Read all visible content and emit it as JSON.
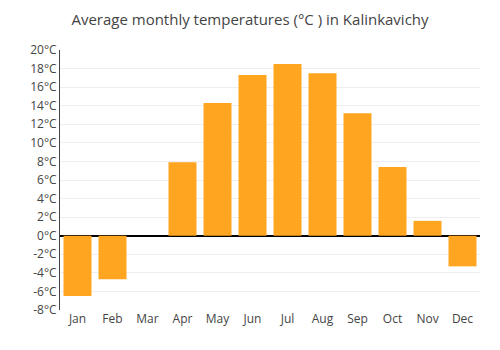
{
  "chart_data": {
    "type": "bar",
    "title": "Average monthly temperatures (°C ) in Kalinkavichy",
    "categories": [
      "Jan",
      "Feb",
      "Mar",
      "Apr",
      "May",
      "Jun",
      "Jul",
      "Aug",
      "Sep",
      "Oct",
      "Nov",
      "Dec"
    ],
    "values": [
      -6.5,
      -4.7,
      0.0,
      7.9,
      14.3,
      17.3,
      18.5,
      17.5,
      13.2,
      7.4,
      1.6,
      -3.3
    ],
    "color": "#FFA520",
    "ylim": [
      -8,
      20
    ],
    "yticks": [
      {
        "value": -8,
        "label": "-8°C"
      },
      {
        "value": -6,
        "label": "-6°C"
      },
      {
        "value": -4,
        "label": "-4°C"
      },
      {
        "value": -2,
        "label": "-2°C"
      },
      {
        "value": 0,
        "label": "0°C"
      },
      {
        "value": 2,
        "label": "2°C"
      },
      {
        "value": 4,
        "label": "4°C"
      },
      {
        "value": 6,
        "label": "6°C"
      },
      {
        "value": 8,
        "label": "8°C"
      },
      {
        "value": 10,
        "label": "10°C"
      },
      {
        "value": 12,
        "label": "12°C"
      },
      {
        "value": 14,
        "label": "14°C"
      },
      {
        "value": 16,
        "label": "16°C"
      },
      {
        "value": 18,
        "label": "18°C"
      },
      {
        "value": 20,
        "label": "20°C"
      }
    ],
    "grid": true
  }
}
